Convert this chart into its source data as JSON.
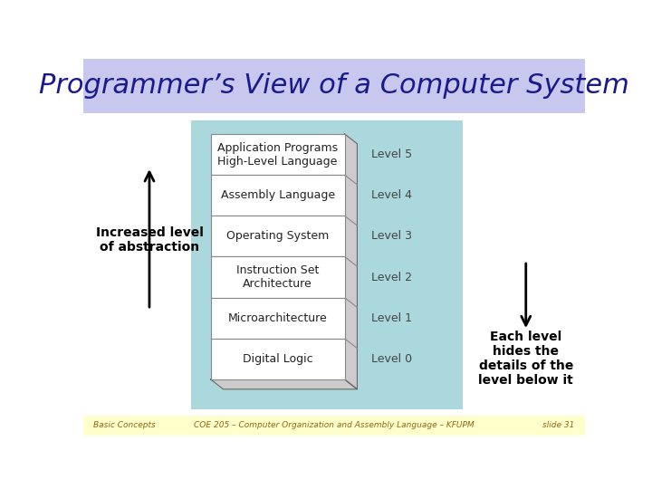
{
  "title": "Programmer’s View of a Computer System",
  "title_bg": "#c8c8ee",
  "title_color": "#1a1a8c",
  "title_fontsize": 22,
  "bg_color": "#ffffff",
  "footer_bg": "#ffffcc",
  "footer_left": "Basic Concepts",
  "footer_center": "COE 205 – Computer Organization and Assembly Language – KFUPM",
  "footer_right": "slide 31",
  "footer_color": "#8b6914",
  "levels": [
    {
      "label": "Application Programs\nHigh-Level Language",
      "level": "Level 5"
    },
    {
      "label": "Assembly Language",
      "level": "Level 4"
    },
    {
      "label": "Operating System",
      "level": "Level 3"
    },
    {
      "label": "Instruction Set\nArchitecture",
      "level": "Level 2"
    },
    {
      "label": "Microarchitecture",
      "level": "Level 1"
    },
    {
      "label": "Digital Logic",
      "level": "Level 0"
    }
  ],
  "content_bg": "#aad8dd",
  "cell_bg": "#ffffff",
  "cell_border": "#888888",
  "side_face_color": "#cccccc",
  "bottom_face_color": "#cccccc",
  "left_label": "Increased level\nof abstraction",
  "right_label": "Each level\nhides the\ndetails of the\nlevel below it",
  "level_label_color": "#444444",
  "cell_text_color": "#222222",
  "cell_text_fontsize": 9,
  "level_text_fontsize": 9
}
